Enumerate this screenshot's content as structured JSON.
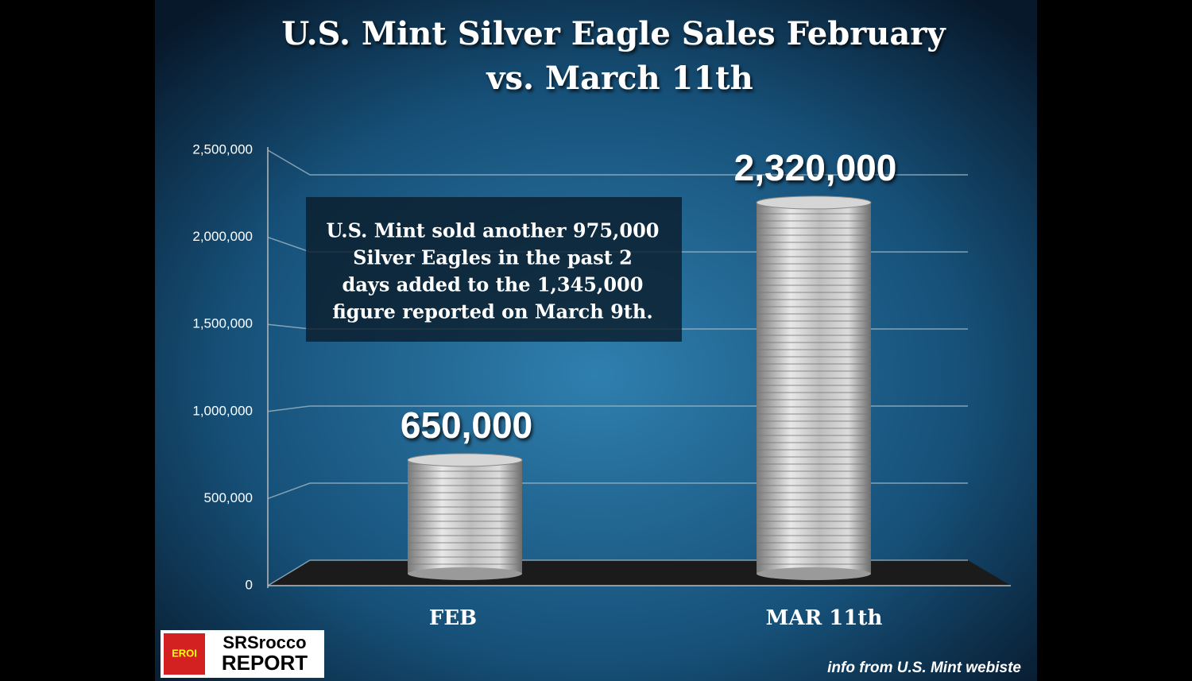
{
  "chart_data": {
    "type": "bar",
    "title": [
      "U.S. Mint Silver Eagle Sales February",
      "vs. March 11th"
    ],
    "categories": [
      "FEB",
      "MAR 11th"
    ],
    "values": [
      650000,
      2320000
    ],
    "value_labels": [
      "650,000",
      "2,320,000"
    ],
    "color": "#c8c8c8",
    "ylim": [
      0,
      2500000
    ],
    "yticks": [
      0,
      {
        "value": 500000,
        "label": "500,000"
      },
      {
        "value": 1000000,
        "label": "1,000,000"
      },
      {
        "value": 1500000,
        "label": "1,500,000"
      },
      {
        "value": 2000000,
        "label": "2,000,000"
      },
      {
        "value": 2500000,
        "label": "2,500,000"
      }
    ],
    "grid": true,
    "annotation": [
      "U.S. Mint sold another 975,000",
      "Silver Eagles in the past 2",
      "days added to the 1,345,000",
      "figure reported on March 9th."
    ],
    "source": "info from U.S. Mint webiste",
    "logo": [
      "EROI",
      "SRSrocco",
      "REPORT"
    ]
  }
}
